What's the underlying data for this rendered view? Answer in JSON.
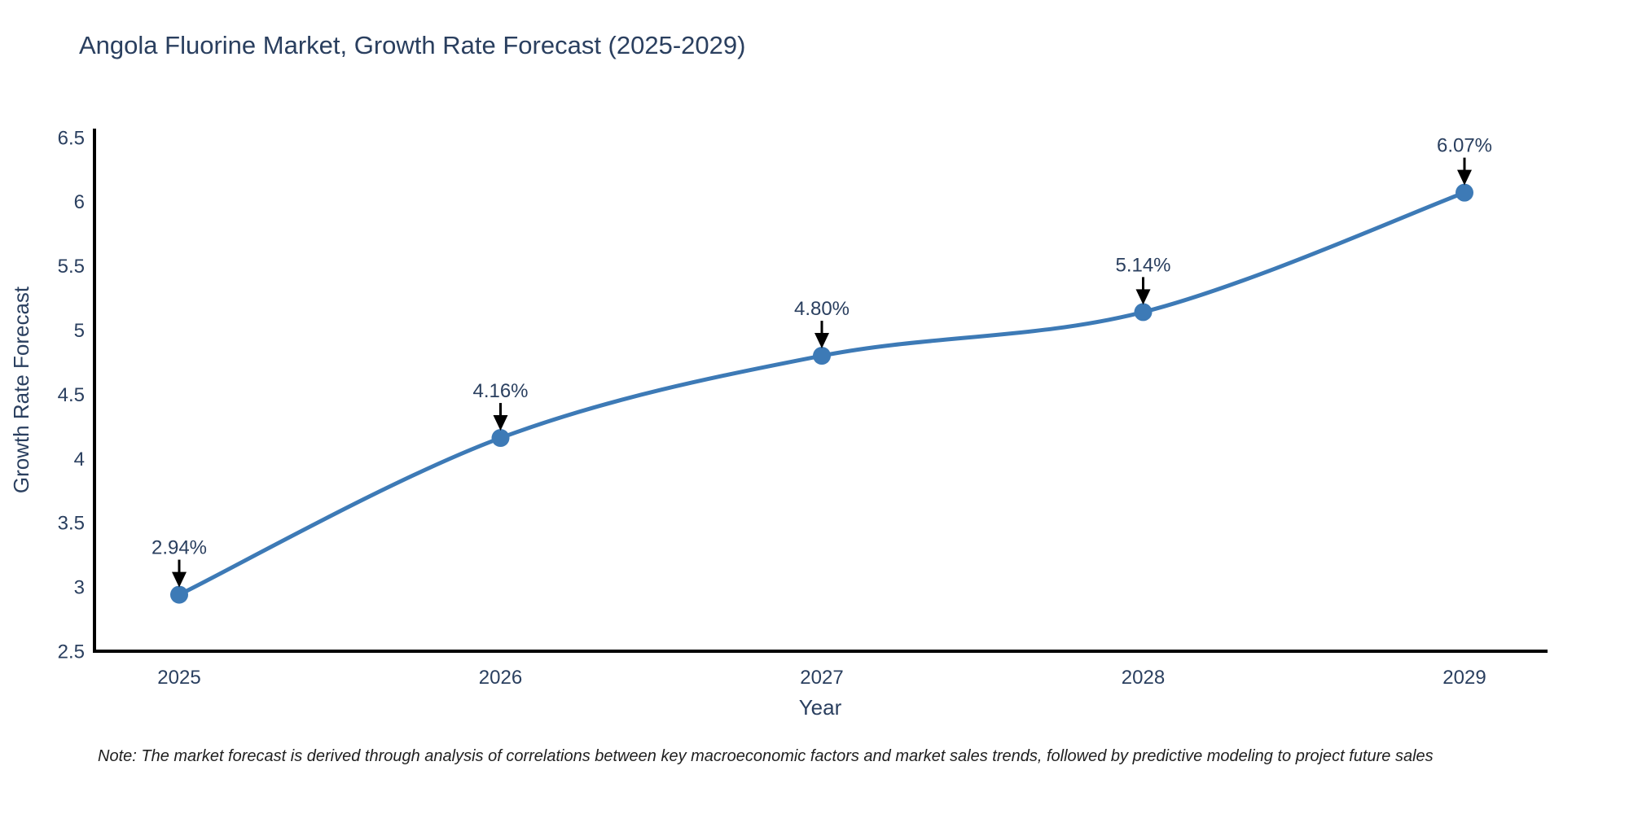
{
  "title": "Angola Fluorine Market, Growth Rate Forecast (2025-2029)",
  "note": "Note: The market forecast is derived through analysis of correlations between key macroeconomic factors and market sales trends, followed by predictive modeling to project future sales",
  "chart_data": {
    "type": "line",
    "title": "Angola Fluorine Market, Growth Rate Forecast (2025-2029)",
    "xlabel": "Year",
    "ylabel": "Growth Rate Forecast",
    "x": [
      2025,
      2026,
      2027,
      2028,
      2029
    ],
    "series": [
      {
        "name": "Growth Rate Forecast",
        "values": [
          2.94,
          4.16,
          4.8,
          5.14,
          6.07
        ]
      }
    ],
    "point_labels": [
      "2.94%",
      "4.16%",
      "4.80%",
      "5.14%",
      "6.07%"
    ],
    "ylim": [
      2.5,
      6.5
    ],
    "ytick_step": 0.5,
    "line_shape": "spline",
    "grid": false,
    "legend": "none",
    "colors": {
      "line": "#3d7ab6",
      "marker": "#3d7ab6",
      "axis": "#000000",
      "tick_text": "#2a3f5f",
      "annotation_text": "#2a3f5f",
      "annotation_arrow": "#000000",
      "note_text": "#1f1f1f",
      "background": "#ffffff"
    }
  }
}
